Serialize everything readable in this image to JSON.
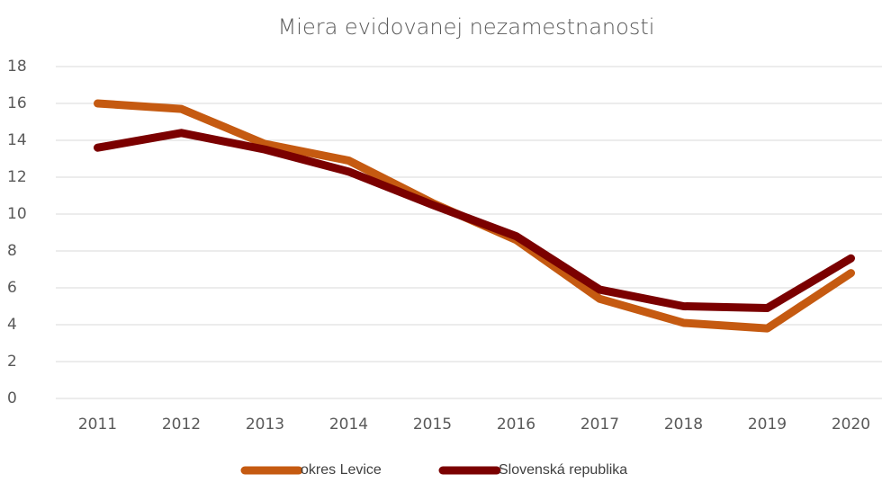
{
  "chart_data": {
    "type": "line",
    "title": "Miera evidovanej nezamestnanosti",
    "categories": [
      "2011",
      "2012",
      "2013",
      "2014",
      "2015",
      "2016",
      "2017",
      "2018",
      "2019",
      "2020"
    ],
    "series": [
      {
        "name": "okres Levice",
        "color": "#c55a11",
        "values": [
          16.0,
          15.7,
          13.8,
          12.9,
          10.6,
          8.6,
          5.4,
          4.1,
          3.8,
          6.8
        ]
      },
      {
        "name": "Slovenská republika",
        "color": "#7b0000",
        "values": [
          13.6,
          14.4,
          13.5,
          12.3,
          10.5,
          8.8,
          5.9,
          5.0,
          4.9,
          7.6
        ]
      }
    ],
    "ylim": [
      0,
      18
    ],
    "yticks": [
      0,
      2,
      4,
      6,
      8,
      10,
      12,
      14,
      16,
      18
    ],
    "grid": true,
    "legend": "bottom"
  }
}
